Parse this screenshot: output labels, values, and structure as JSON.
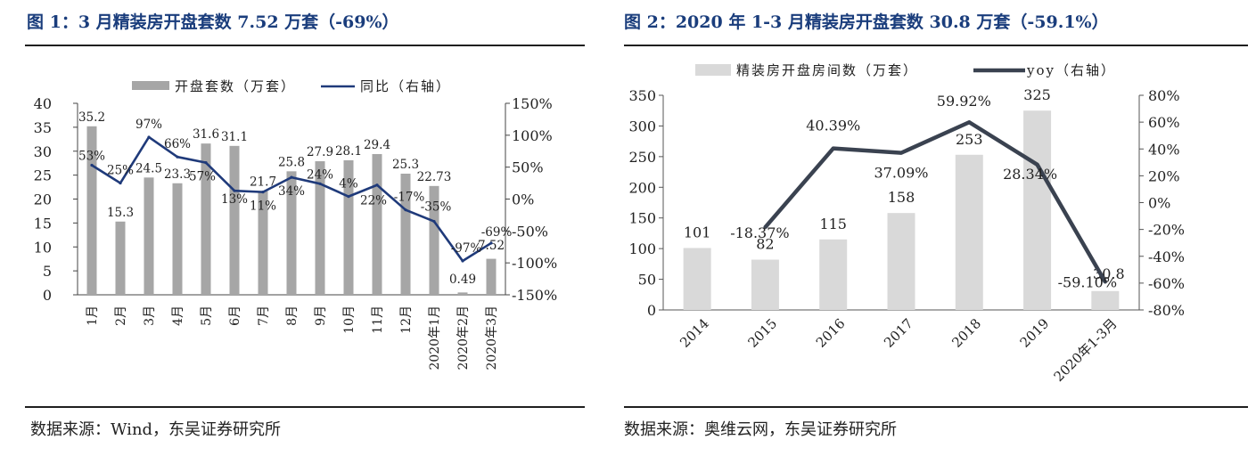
{
  "chart_data": [
    {
      "type": "bar+line",
      "title": "图 1：3 月精装房开盘套数 7.52 万套（-69%）",
      "source": "数据来源：Wind，东吴证券研究所",
      "categories": [
        "1月",
        "2月",
        "3月",
        "4月",
        "5月",
        "6月",
        "7月",
        "8月",
        "9月",
        "10月",
        "11月",
        "12月",
        "2020年1月",
        "2020年2月",
        "2020年3月"
      ],
      "series": [
        {
          "name": "开盘套数（万套）",
          "kind": "bar",
          "axis": "left",
          "values": [
            35.2,
            15.3,
            24.5,
            23.3,
            31.6,
            31.1,
            21.7,
            25.8,
            27.9,
            28.1,
            29.4,
            25.3,
            22.73,
            0.49,
            7.52
          ],
          "labels": [
            "35.2",
            "15.3",
            "24.5",
            "23.3",
            "31.6",
            "31.1",
            "21.7",
            "25.8",
            "27.9",
            "28.1",
            "29.4",
            "25.3",
            "22.73",
            "0.49",
            "7.52"
          ],
          "color": "#a6a6a6"
        },
        {
          "name": "同比（右轴）",
          "kind": "line",
          "axis": "right",
          "values": [
            53,
            25,
            97,
            66,
            57,
            13,
            11,
            34,
            24,
            4,
            22,
            -17,
            -35,
            -97,
            -69
          ],
          "labels": [
            "53%",
            "25%",
            "97%",
            "66%",
            "57%",
            "13%",
            "11%",
            "34%",
            "24%",
            "4%",
            "22%",
            "-17%",
            "-35%",
            "-97%",
            "-69%"
          ],
          "color": "#1f3a7a"
        }
      ],
      "y_left": {
        "range": [
          0,
          40
        ],
        "ticks": [
          "0",
          "5",
          "10",
          "15",
          "20",
          "25",
          "30",
          "35",
          "40"
        ]
      },
      "y_right": {
        "range": [
          -150,
          150
        ],
        "ticks": [
          "-150%",
          "-100%",
          "-50%",
          "0%",
          "50%",
          "100%",
          "150%"
        ]
      }
    },
    {
      "type": "bar+line",
      "title": "图 2：2020 年 1-3 月精装房开盘套数 30.8 万套（-59.1%）",
      "source": "数据来源：奥维云网，东吴证券研究所",
      "categories": [
        "2014",
        "2015",
        "2016",
        "2017",
        "2018",
        "2019",
        "2020年1-3月"
      ],
      "series": [
        {
          "name": "精装房开盘房间数（万套）",
          "kind": "bar",
          "axis": "left",
          "values": [
            101,
            82,
            115,
            158,
            253,
            325,
            30.8
          ],
          "labels": [
            "101",
            "82",
            "115",
            "158",
            "253",
            "325",
            "30.8"
          ],
          "color": "#d9d9d9"
        },
        {
          "name": "yoy（右轴）",
          "kind": "line",
          "axis": "right",
          "values": [
            null,
            -18.37,
            40.39,
            37.09,
            59.92,
            28.34,
            -59.1
          ],
          "labels": [
            "",
            "-18.37%",
            "40.39%",
            "37.09%",
            "59.92%",
            "28.34%",
            "-59.10%"
          ],
          "color": "#3a4250"
        }
      ],
      "y_left": {
        "range": [
          0,
          350
        ],
        "ticks": [
          "0",
          "50",
          "100",
          "150",
          "200",
          "250",
          "300",
          "350"
        ]
      },
      "y_right": {
        "range": [
          -80,
          80
        ],
        "ticks": [
          "-80%",
          "-60%",
          "-40%",
          "-20%",
          "0%",
          "20%",
          "40%",
          "60%",
          "80%"
        ]
      }
    }
  ]
}
